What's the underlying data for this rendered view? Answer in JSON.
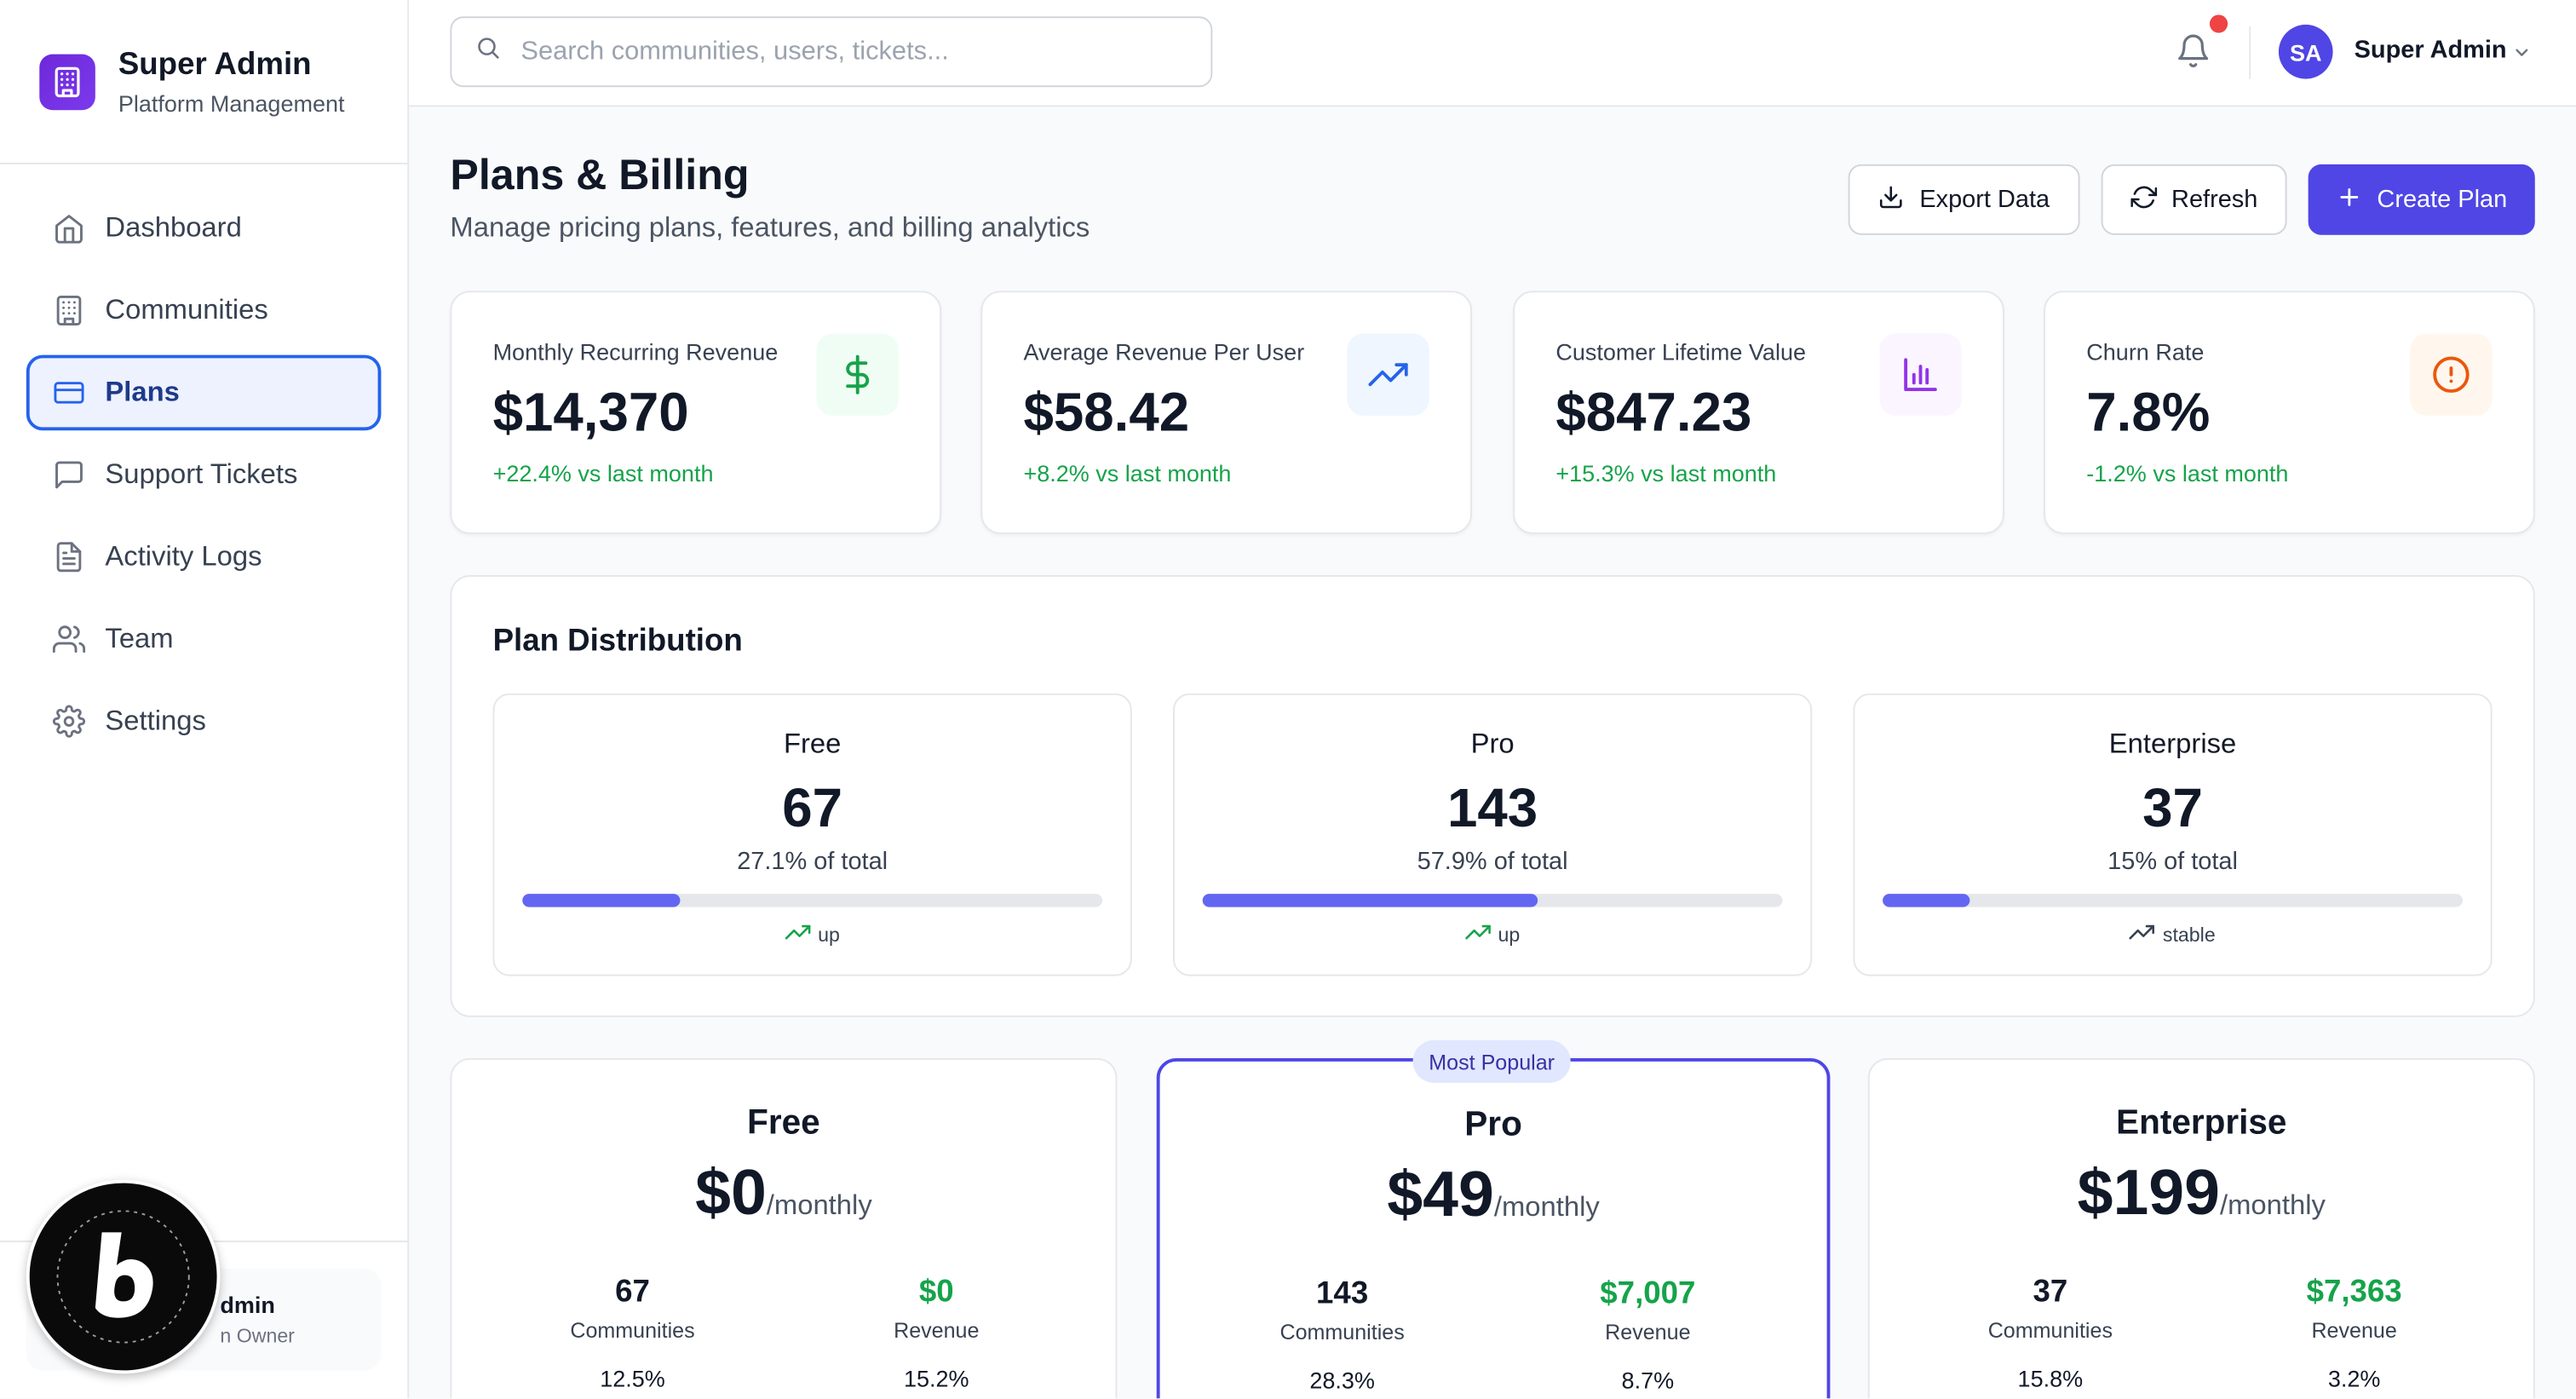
{
  "brand": {
    "title": "Super Admin",
    "subtitle": "Platform Management"
  },
  "nav": {
    "items": [
      {
        "label": "Dashboard",
        "icon": "home-icon"
      },
      {
        "label": "Communities",
        "icon": "building-icon"
      },
      {
        "label": "Plans",
        "icon": "credit-card-icon",
        "active": true
      },
      {
        "label": "Support Tickets",
        "icon": "message-square-icon"
      },
      {
        "label": "Activity Logs",
        "icon": "file-text-icon"
      },
      {
        "label": "Team",
        "icon": "users-icon"
      },
      {
        "label": "Settings",
        "icon": "gear-icon"
      }
    ]
  },
  "sidebar_user": {
    "name": "dmin",
    "role": "n Owner"
  },
  "search": {
    "placeholder": "Search communities, users, tickets..."
  },
  "header": {
    "avatar_initials": "SA",
    "user_name": "Super Admin"
  },
  "page": {
    "title": "Plans & Billing",
    "subtitle": "Manage pricing plans, features, and billing analytics",
    "export_label": "Export Data",
    "refresh_label": "Refresh",
    "create_label": "Create Plan"
  },
  "stats": [
    {
      "label": "Monthly Recurring Revenue",
      "value": "$14,370",
      "change": "+22.4% vs last month",
      "icon": "dollar-icon",
      "color": "#16a34a"
    },
    {
      "label": "Average Revenue Per User",
      "value": "$58.42",
      "change": "+8.2% vs last month",
      "icon": "trending-up-icon",
      "color": "#2563eb"
    },
    {
      "label": "Customer Lifetime Value",
      "value": "$847.23",
      "change": "+15.3% vs last month",
      "icon": "bar-chart-icon",
      "color": "#9333ea"
    },
    {
      "label": "Churn Rate",
      "value": "7.8%",
      "change": "-1.2% vs last month",
      "icon": "alert-circle-icon",
      "color": "#ea580c"
    }
  ],
  "distribution": {
    "title": "Plan Distribution",
    "items": [
      {
        "name": "Free",
        "count": "67",
        "percent_label": "27.1% of total",
        "fraction": 0.271,
        "trend": "up"
      },
      {
        "name": "Pro",
        "count": "143",
        "percent_label": "57.9% of total",
        "fraction": 0.579,
        "trend": "up"
      },
      {
        "name": "Enterprise",
        "count": "37",
        "percent_label": "15% of total",
        "fraction": 0.15,
        "trend": "stable"
      }
    ]
  },
  "plans": [
    {
      "name": "Free",
      "price": "$0",
      "period": "/monthly",
      "communities": "67",
      "communities_label": "Communities",
      "revenue": "$0",
      "revenue_label": "Revenue",
      "stat_left": "12.5%",
      "stat_right": "15.2%"
    },
    {
      "name": "Pro",
      "price": "$49",
      "period": "/monthly",
      "communities": "143",
      "communities_label": "Communities",
      "revenue": "$7,007",
      "revenue_label": "Revenue",
      "stat_left": "28.3%",
      "stat_right": "8.7%",
      "badge": "Most Popular"
    },
    {
      "name": "Enterprise",
      "price": "$199",
      "period": "/monthly",
      "communities": "37",
      "communities_label": "Communities",
      "revenue": "$7,363",
      "revenue_label": "Revenue",
      "stat_left": "15.8%",
      "stat_right": "3.2%"
    }
  ],
  "colors": {
    "accent": "#4f46e5",
    "positive": "#16a34a",
    "notification": "#ef4444",
    "bar_fill": "#6366f1"
  }
}
